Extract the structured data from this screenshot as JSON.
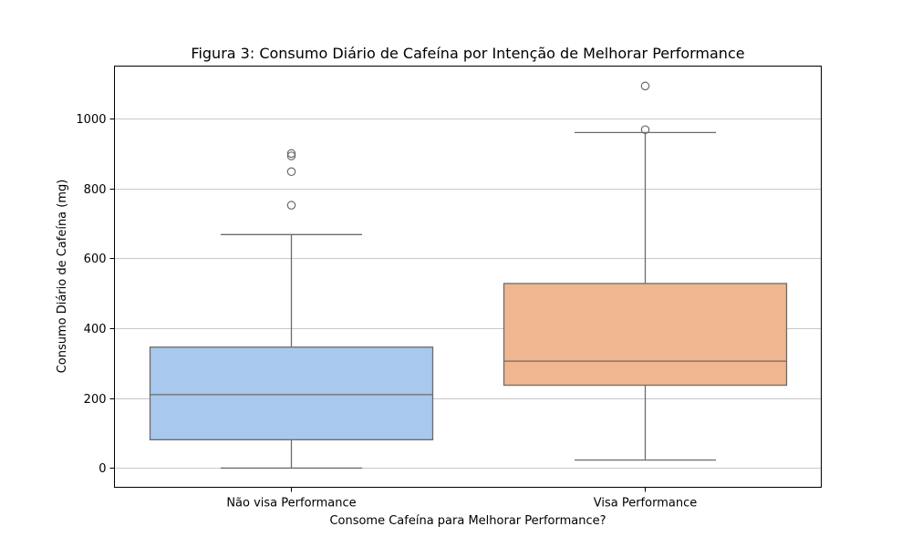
{
  "chart_data": {
    "type": "box",
    "title": "Figura 3: Consumo Diário de Cafeína por Intenção de Melhorar Performance",
    "xlabel": "Consome Cafeína para Melhorar Performance?",
    "ylabel": "Consumo Diário de Cafeína (mg)",
    "ylim": [
      -55,
      1150
    ],
    "yticks": [
      "0",
      "200",
      "400",
      "600",
      "800",
      "1000"
    ],
    "grid": "horizontal",
    "categories": [
      "Não visa Performance",
      "Visa Performance"
    ],
    "boxes": [
      {
        "category": "Não visa Performance",
        "color": "#a8c8ee",
        "min": 0,
        "q1": 81,
        "median": 210,
        "q3": 346,
        "max": 668,
        "outliers": [
          752,
          848,
          893,
          900
        ]
      },
      {
        "category": "Visa Performance",
        "color": "#f0b68f",
        "min": 23,
        "q1": 237,
        "median": 306,
        "q3": 528,
        "max": 960,
        "outliers": [
          968,
          1093
        ]
      }
    ]
  }
}
